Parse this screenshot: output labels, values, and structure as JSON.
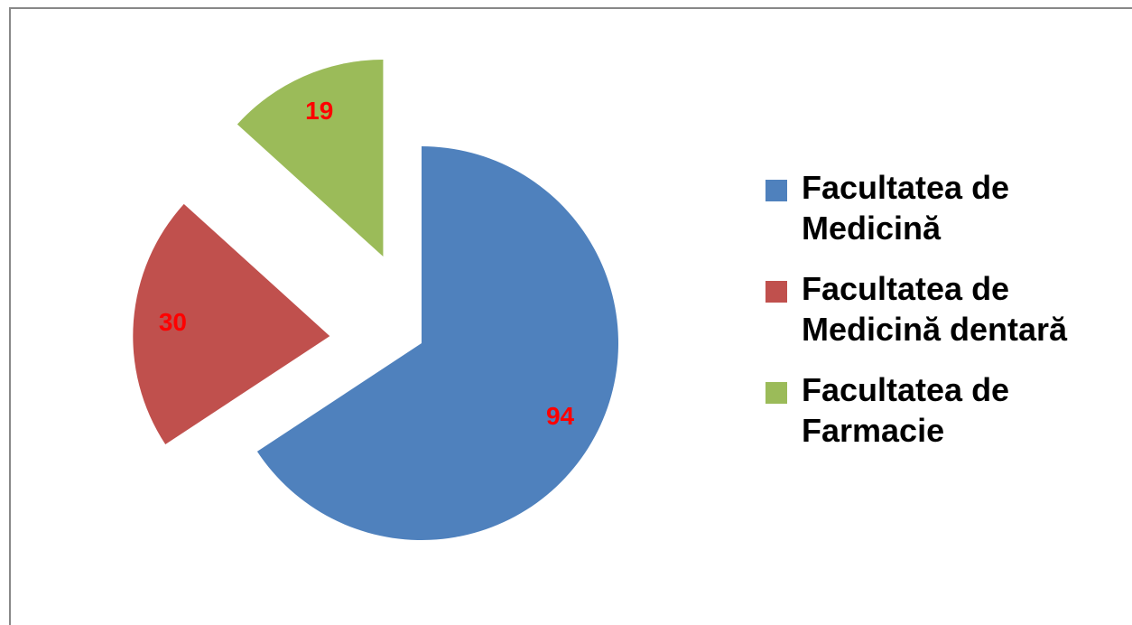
{
  "chart_data": {
    "type": "pie",
    "categories": [
      "Facultatea de Medicină",
      "Facultatea de Medicină dentară",
      "Facultatea de Farmacie"
    ],
    "values": [
      94,
      30,
      19
    ],
    "colors": [
      "#4f81bd",
      "#c0504d",
      "#9bbb59"
    ]
  }
}
